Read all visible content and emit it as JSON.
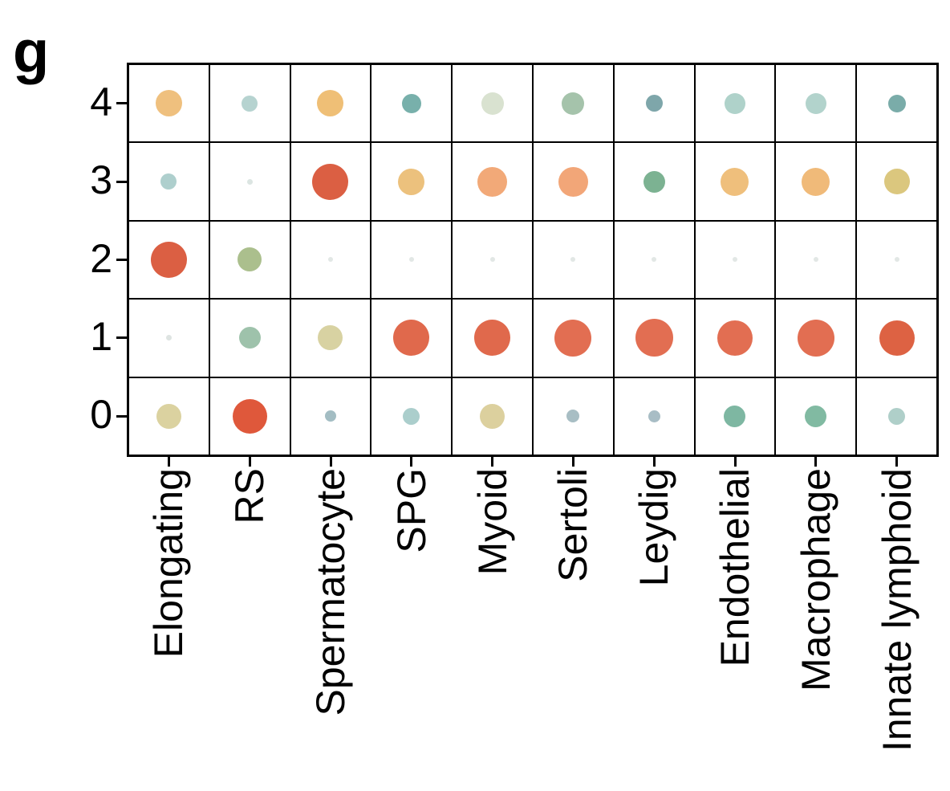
{
  "panel_label": "g",
  "chart_data": {
    "type": "scatter",
    "subtype": "dot-matrix",
    "title": "",
    "xlabel": "",
    "ylabel": "",
    "grid": {
      "rows": 5,
      "cols": 10,
      "line_color": "#000000",
      "background": "#ffffff"
    },
    "x_categories": [
      "Elongating",
      "RS",
      "Spermatocyte",
      "SPG",
      "Myoid",
      "Sertoli",
      "Leydig",
      "Endothelial",
      "Macrophage",
      "Innate lymphoid"
    ],
    "y_categories_top_to_bottom": [
      "4",
      "3",
      "2",
      "1",
      "0"
    ],
    "legend": "none visible; dot size and color encode values",
    "rows": [
      {
        "y": "4",
        "dots": [
          {
            "d": 33,
            "c": "#EFC07E"
          },
          {
            "d": 20,
            "c": "#B6D3D0"
          },
          {
            "d": 33,
            "c": "#EFBF76"
          },
          {
            "d": 24,
            "c": "#78B0AB"
          },
          {
            "d": 28,
            "c": "#D9E2D0"
          },
          {
            "d": 28,
            "c": "#A5C3AB"
          },
          {
            "d": 21,
            "c": "#7EA6AA"
          },
          {
            "d": 26,
            "c": "#AFD2CA"
          },
          {
            "d": 26,
            "c": "#B2D3CC"
          },
          {
            "d": 22,
            "c": "#7AACA9"
          }
        ]
      },
      {
        "y": "3",
        "dots": [
          {
            "d": 20,
            "c": "#AECFCD"
          },
          {
            "d": 7,
            "c": "#DCE5E2"
          },
          {
            "d": 45,
            "c": "#DB5F43"
          },
          {
            "d": 33,
            "c": "#ECC17D"
          },
          {
            "d": 37,
            "c": "#F2A978"
          },
          {
            "d": 37,
            "c": "#F2A678"
          },
          {
            "d": 27,
            "c": "#7CB292"
          },
          {
            "d": 35,
            "c": "#EFBF7C"
          },
          {
            "d": 35,
            "c": "#F0BA79"
          },
          {
            "d": 32,
            "c": "#DBC77E"
          }
        ]
      },
      {
        "y": "2",
        "dots": [
          {
            "d": 45,
            "c": "#DB5F43"
          },
          {
            "d": 30,
            "c": "#ABBF8D"
          },
          {
            "d": 6,
            "c": "#E2E7E5"
          },
          {
            "d": 6,
            "c": "#E2E7E5"
          },
          {
            "d": 6,
            "c": "#E2E7E5"
          },
          {
            "d": 6,
            "c": "#E2E7E5"
          },
          {
            "d": 6,
            "c": "#E2E7E5"
          },
          {
            "d": 6,
            "c": "#E2E7E5"
          },
          {
            "d": 6,
            "c": "#E2E7E5"
          },
          {
            "d": 6,
            "c": "#E2E7E5"
          }
        ]
      },
      {
        "y": "1",
        "dots": [
          {
            "d": 7,
            "c": "#DEE4E2"
          },
          {
            "d": 27,
            "c": "#9EC2AB"
          },
          {
            "d": 31,
            "c": "#D8D2A2"
          },
          {
            "d": 45,
            "c": "#E0694C"
          },
          {
            "d": 45,
            "c": "#E0694C"
          },
          {
            "d": 46,
            "c": "#E26E52"
          },
          {
            "d": 47,
            "c": "#E26E52"
          },
          {
            "d": 44,
            "c": "#E26E52"
          },
          {
            "d": 46,
            "c": "#E26E52"
          },
          {
            "d": 44,
            "c": "#DD6243"
          }
        ]
      },
      {
        "y": "0",
        "dots": [
          {
            "d": 31,
            "c": "#DBD2A0"
          },
          {
            "d": 43,
            "c": "#DF583B"
          },
          {
            "d": 14,
            "c": "#A3BDC3"
          },
          {
            "d": 21,
            "c": "#ABCECC"
          },
          {
            "d": 31,
            "c": "#DCD09E"
          },
          {
            "d": 16,
            "c": "#A8BEC4"
          },
          {
            "d": 15,
            "c": "#A8BDC5"
          },
          {
            "d": 27,
            "c": "#7EB7A2"
          },
          {
            "d": 27,
            "c": "#81BAA2"
          },
          {
            "d": 21,
            "c": "#AFCFC9"
          }
        ]
      }
    ]
  }
}
